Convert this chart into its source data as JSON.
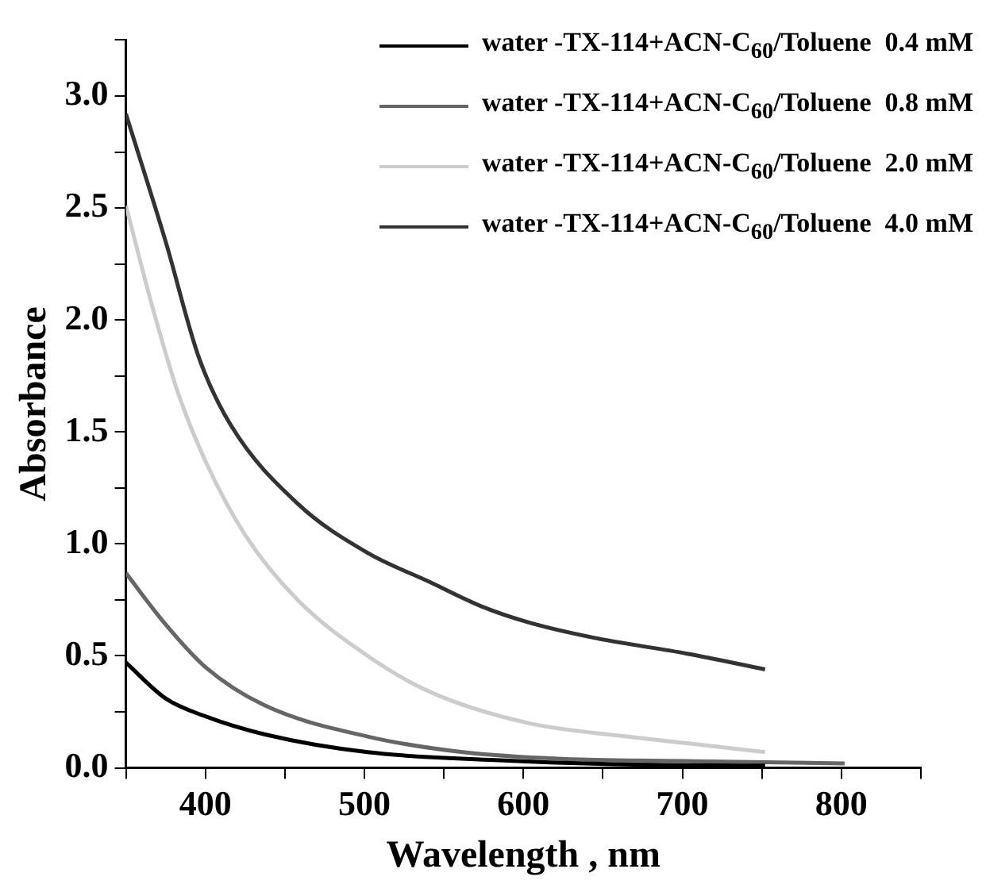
{
  "chart_data": {
    "type": "line",
    "xlabel": "Wavelength , nm",
    "ylabel": "Absorbance",
    "xlim": [
      350,
      850
    ],
    "ylim": [
      0,
      3.25
    ],
    "xticks": [
      {
        "value": 350,
        "label": null
      },
      400,
      {
        "value": 450,
        "label": null
      },
      500,
      {
        "value": 550,
        "label": null
      },
      600,
      {
        "value": 650,
        "label": null
      },
      700,
      {
        "value": 750,
        "label": null
      },
      800,
      {
        "value": 850,
        "label": null
      }
    ],
    "yticks": [
      {
        "value": 0,
        "label": "0.0"
      },
      {
        "value": 0.25,
        "label": null
      },
      {
        "value": 0.5,
        "label": "0.5"
      },
      {
        "value": 0.75,
        "label": null
      },
      {
        "value": 1.0,
        "label": "1.0"
      },
      {
        "value": 1.25,
        "label": null
      },
      {
        "value": 1.5,
        "label": "1.5"
      },
      {
        "value": 1.75,
        "label": null
      },
      {
        "value": 2.0,
        "label": "2.0"
      },
      {
        "value": 2.25,
        "label": null
      },
      {
        "value": 2.5,
        "label": "2.5"
      },
      {
        "value": 2.75,
        "label": null
      },
      {
        "value": 3.0,
        "label": "3.0"
      },
      {
        "value": 3.25,
        "label": null
      }
    ],
    "legend": "top right",
    "marker": "none",
    "line_style": "solid",
    "series": [
      {
        "name": "water -TX-114+ACN-C$_{60}$/Toluene  0.4 mM",
        "color": "#000000",
        "x": [
          350,
          375,
          400,
          437,
          502,
          582,
          665,
          752
        ],
        "values": [
          0.47,
          0.31,
          0.23,
          0.15,
          0.07,
          0.035,
          0.015,
          0.01
        ]
      },
      {
        "name": "water -TX-114+ACN-C$_{60}$/Toluene  0.8 mM",
        "color": "#666666",
        "x": [
          350,
          375,
          400,
          437,
          502,
          562,
          624,
          707,
          802
        ],
        "values": [
          0.87,
          0.64,
          0.45,
          0.28,
          0.14,
          0.07,
          0.04,
          0.03,
          0.02
        ]
      },
      {
        "name": "water -TX-114+ACN-C$_{60}$/Toluene  2.0 mM",
        "color": "#cccccc",
        "x": [
          350,
          367,
          383,
          400,
          425,
          458,
          502,
          541,
          603,
          665,
          703,
          752
        ],
        "values": [
          2.51,
          2.05,
          1.67,
          1.37,
          1.04,
          0.75,
          0.5,
          0.34,
          0.2,
          0.14,
          0.11,
          0.07
        ]
      },
      {
        "name": "water -TX-114+ACN-C$_{60}$/Toluene  4.0 mM",
        "color": "#333333",
        "x": [
          350,
          375,
          396,
          416,
          458,
          502,
          541,
          574,
          603,
          645,
          703,
          752
        ],
        "values": [
          2.92,
          2.35,
          1.83,
          1.53,
          1.18,
          0.96,
          0.83,
          0.72,
          0.65,
          0.58,
          0.51,
          0.44
        ]
      }
    ]
  }
}
